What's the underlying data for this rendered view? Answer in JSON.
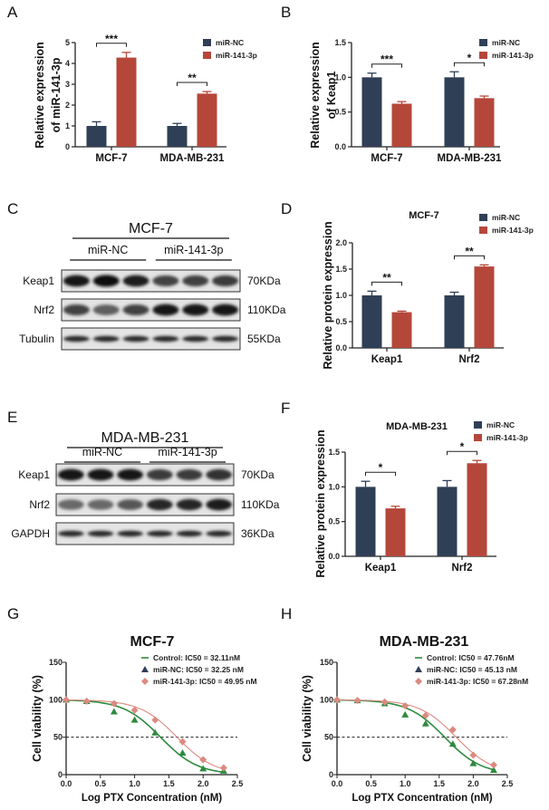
{
  "colors": {
    "miR_NC": "#2f3f56",
    "miR_141_3p": "#b5473a",
    "control": "#2e8a3f",
    "nc_curve": "#2f3f56",
    "mir141_curve": "#db8a80",
    "axis": "#222222"
  },
  "panel_labels": {
    "A": "A",
    "B": "B",
    "C": "C",
    "D": "D",
    "E": "E",
    "F": "F",
    "G": "G",
    "H": "H"
  },
  "legend": {
    "nc": "miR-NC",
    "mir": "miR-141-3p"
  },
  "chart_data": [
    {
      "id": "A",
      "type": "bar",
      "title": "",
      "ylabel": [
        "Relative expression",
        "of miR-141-3p"
      ],
      "ylim": [
        0,
        5
      ],
      "yticks": [
        0,
        1,
        2,
        3,
        4,
        5
      ],
      "categories": [
        "MCF-7",
        "MDA-MB-231"
      ],
      "series": [
        {
          "name": "miR-NC",
          "values": [
            1.0,
            1.0
          ],
          "errors": [
            0.2,
            0.12
          ]
        },
        {
          "name": "miR-141-3p",
          "values": [
            4.28,
            2.55
          ],
          "errors": [
            0.25,
            0.1
          ]
        }
      ],
      "significance": [
        "***",
        "**"
      ],
      "legend": "top-right"
    },
    {
      "id": "B",
      "type": "bar",
      "title": "",
      "ylabel": [
        "Relative expression",
        "of Keap1"
      ],
      "ylim": [
        0,
        1.5
      ],
      "yticks": [
        0.0,
        0.5,
        1.0,
        1.5
      ],
      "categories": [
        "MCF-7",
        "MDA-MB-231"
      ],
      "series": [
        {
          "name": "miR-NC",
          "values": [
            1.0,
            1.0
          ],
          "errors": [
            0.06,
            0.08
          ]
        },
        {
          "name": "miR-141-3p",
          "values": [
            0.62,
            0.7
          ],
          "errors": [
            0.03,
            0.03
          ]
        }
      ],
      "significance": [
        "***",
        "*"
      ],
      "legend": "top-right"
    },
    {
      "id": "D",
      "type": "bar",
      "title": "MCF-7",
      "ylabel": [
        "Relative protein expression"
      ],
      "ylim": [
        0,
        2.0
      ],
      "yticks": [
        0.0,
        0.5,
        1.0,
        1.5,
        2.0
      ],
      "categories": [
        "Keap1",
        "Nrf2"
      ],
      "series": [
        {
          "name": "miR-NC",
          "values": [
            1.0,
            1.0
          ],
          "errors": [
            0.08,
            0.06
          ]
        },
        {
          "name": "miR-141-3p",
          "values": [
            0.68,
            1.55
          ],
          "errors": [
            0.02,
            0.03
          ]
        }
      ],
      "significance": [
        "**",
        "**"
      ],
      "legend": "top-right"
    },
    {
      "id": "F",
      "type": "bar",
      "title": "MDA-MB-231",
      "ylabel": [
        "Relative protein expression"
      ],
      "ylim": [
        0,
        1.5
      ],
      "yticks": [
        0.0,
        0.5,
        1.0,
        1.5
      ],
      "categories": [
        "Keap1",
        "Nrf2"
      ],
      "series": [
        {
          "name": "miR-NC",
          "values": [
            1.0,
            1.0
          ],
          "errors": [
            0.08,
            0.09
          ]
        },
        {
          "name": "miR-141-3p",
          "values": [
            0.69,
            1.34
          ],
          "errors": [
            0.03,
            0.04
          ]
        }
      ],
      "significance": [
        "*",
        "*"
      ],
      "legend": "top-right"
    },
    {
      "id": "G",
      "type": "line",
      "title": "MCF-7",
      "xlabel": "Log PTX Concentration (nM)",
      "ylabel": "Cell viability (%)",
      "xlim": [
        0,
        2.5
      ],
      "ylim": [
        0,
        150
      ],
      "xticks": [
        0.0,
        0.5,
        1.0,
        1.5,
        2.0,
        2.5
      ],
      "yticks": [
        0,
        50,
        100,
        150
      ],
      "reference_line": 50,
      "x": [
        0,
        0.3,
        0.7,
        1.0,
        1.3,
        1.7,
        2.0,
        2.3
      ],
      "series": [
        {
          "name": "Control: IC50 = 32.11nM",
          "marker": "line",
          "values": [
            100,
            98,
            86,
            73,
            56,
            29,
            8,
            5
          ]
        },
        {
          "name": "miR-NC: IC50 = 32.25 nM",
          "marker": "triangle",
          "values": [
            100,
            98,
            84,
            73,
            56,
            29,
            8,
            5
          ]
        },
        {
          "name": "miR-141-3p: IC50 = 49.95 nM",
          "marker": "diamond",
          "values": [
            100,
            98,
            95,
            86,
            73,
            44,
            20,
            9
          ]
        }
      ],
      "legend": "top-right"
    },
    {
      "id": "H",
      "type": "line",
      "title": "MDA-MB-231",
      "xlabel": "Log PTX Concentration (nM)",
      "ylabel": "Cell viability (%)",
      "xlim": [
        0,
        2.5
      ],
      "ylim": [
        0,
        150
      ],
      "xticks": [
        0.0,
        0.5,
        1.0,
        1.5,
        2.0,
        2.5
      ],
      "yticks": [
        0,
        50,
        100,
        150
      ],
      "reference_line": 50,
      "x": [
        0,
        0.3,
        0.7,
        1.0,
        1.3,
        1.7,
        2.0,
        2.3
      ],
      "series": [
        {
          "name": "Control: IC50 = 47.76nM",
          "marker": "line",
          "values": [
            100,
            99,
            96,
            88,
            75,
            43,
            17,
            7
          ]
        },
        {
          "name": "miR-NC: IC50 = 45.13 nM",
          "marker": "triangle",
          "values": [
            100,
            99,
            95,
            80,
            68,
            41,
            15,
            6
          ]
        },
        {
          "name": "miR-141-3p: IC50 = 67.28nM",
          "marker": "diamond",
          "values": [
            100,
            99,
            97,
            92,
            79,
            60,
            26,
            13
          ]
        }
      ],
      "legend": "top-right"
    }
  ],
  "blots": [
    {
      "id": "C",
      "title": "MCF-7",
      "groups": [
        "miR-NC",
        "miR-141-3p"
      ],
      "rows": [
        {
          "protein": "Keap1",
          "size": "70KDa",
          "intensity": [
            0.95,
            1,
            0.9,
            0.7,
            0.72,
            0.75
          ]
        },
        {
          "protein": "Nrf2",
          "size": "110KDa",
          "intensity": [
            0.7,
            0.55,
            0.7,
            0.95,
            0.95,
            0.95
          ]
        },
        {
          "protein": "Tubulin",
          "size": "55KDa",
          "intensity": [
            0.85,
            0.85,
            0.85,
            0.85,
            0.85,
            0.85
          ]
        }
      ]
    },
    {
      "id": "E",
      "title": "MDA-MB-231",
      "groups": [
        "miR-NC",
        "miR-141-3p"
      ],
      "rows": [
        {
          "protein": "Keap1",
          "size": "70KDa",
          "intensity": [
            0.95,
            0.95,
            0.95,
            0.75,
            0.75,
            0.8
          ]
        },
        {
          "protein": "Nrf2",
          "size": "110KDa",
          "intensity": [
            0.5,
            0.5,
            0.6,
            0.85,
            0.85,
            0.9
          ]
        },
        {
          "protein": "GAPDH",
          "size": "36KDa",
          "intensity": [
            0.85,
            0.85,
            0.85,
            0.85,
            0.85,
            0.85
          ]
        }
      ]
    }
  ]
}
